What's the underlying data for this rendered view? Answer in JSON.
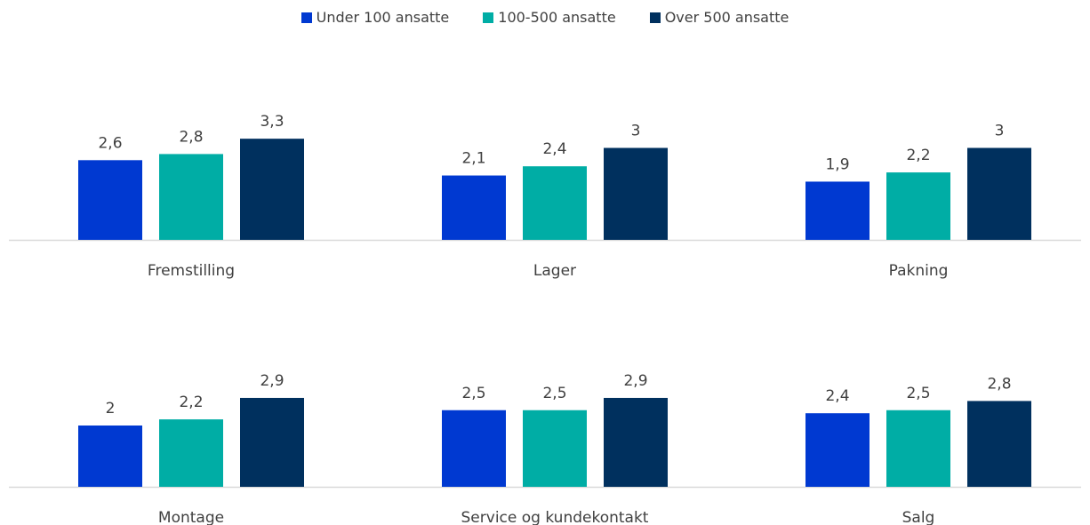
{
  "chart_data": {
    "type": "bar",
    "title": "",
    "ylabel": "",
    "ylim": [
      0,
      3.5
    ],
    "grid": false,
    "legend_position": "top",
    "series": [
      {
        "name": "Under 100 ansatte",
        "color": "#0039D1"
      },
      {
        "name": "100-500 ansatte",
        "color": "#00ADA5"
      },
      {
        "name": "Over 500 ansatte",
        "color": "#00305E"
      }
    ],
    "panels": [
      {
        "category": "Fremstilling",
        "values": [
          2.6,
          2.8,
          3.3
        ],
        "labels": [
          "2,6",
          "2,8",
          "3,3"
        ]
      },
      {
        "category": "Lager",
        "values": [
          2.1,
          2.4,
          3.0
        ],
        "labels": [
          "2,1",
          "2,4",
          "3"
        ]
      },
      {
        "category": "Pakning",
        "values": [
          1.9,
          2.2,
          3.0
        ],
        "labels": [
          "1,9",
          "2,2",
          "3"
        ]
      },
      {
        "category": "Montage",
        "values": [
          2.0,
          2.2,
          2.9
        ],
        "labels": [
          "2",
          "2,2",
          "2,9"
        ]
      },
      {
        "category": "Service og kundekontakt",
        "values": [
          2.5,
          2.5,
          2.9
        ],
        "labels": [
          "2,5",
          "2,5",
          "2,9"
        ]
      },
      {
        "category": "Salg",
        "values": [
          2.4,
          2.5,
          2.8
        ],
        "labels": [
          "2,4",
          "2,5",
          "2,8"
        ]
      }
    ]
  }
}
